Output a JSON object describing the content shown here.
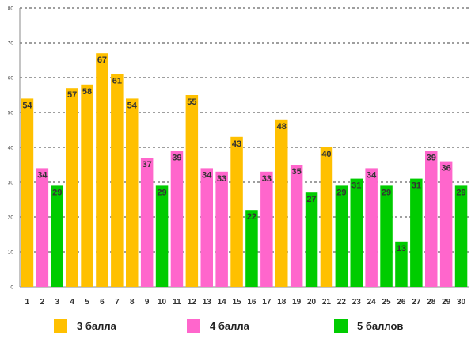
{
  "chart_data": {
    "type": "bar",
    "title": "",
    "xlabel": "",
    "ylabel": "",
    "ylim": [
      0,
      80
    ],
    "yticks": [
      0,
      10,
      20,
      30,
      40,
      50,
      60,
      70,
      80
    ],
    "grid": true,
    "categories": [
      "1",
      "2",
      "3",
      "4",
      "5",
      "6",
      "7",
      "8",
      "9",
      "10",
      "11",
      "12",
      "13",
      "14",
      "15",
      "16",
      "17",
      "18",
      "19",
      "20",
      "21",
      "22",
      "23",
      "24",
      "25",
      "26",
      "27",
      "28",
      "29",
      "30"
    ],
    "values": [
      54,
      34,
      29,
      57,
      58,
      67,
      61,
      54,
      37,
      29,
      39,
      55,
      34,
      33,
      43,
      22,
      33,
      48,
      35,
      27,
      40,
      29,
      31,
      34,
      29,
      13,
      31,
      39,
      36,
      29
    ],
    "groups": [
      "g3",
      "g4",
      "g5",
      "g3",
      "g3",
      "g3",
      "g3",
      "g3",
      "g4",
      "g5",
      "g4",
      "g3",
      "g4",
      "g4",
      "g3",
      "g5",
      "g4",
      "g3",
      "g4",
      "g5",
      "g3",
      "g5",
      "g5",
      "g4",
      "g5",
      "g5",
      "g5",
      "g4",
      "g4",
      "g5"
    ],
    "legend": [
      {
        "key": "g3",
        "label": "3 балла",
        "color": "#FFC000"
      },
      {
        "key": "g4",
        "label": "4 балла",
        "color": "#FF66CC"
      },
      {
        "key": "g5",
        "label": "5 баллов",
        "color": "#00CC00"
      }
    ]
  }
}
